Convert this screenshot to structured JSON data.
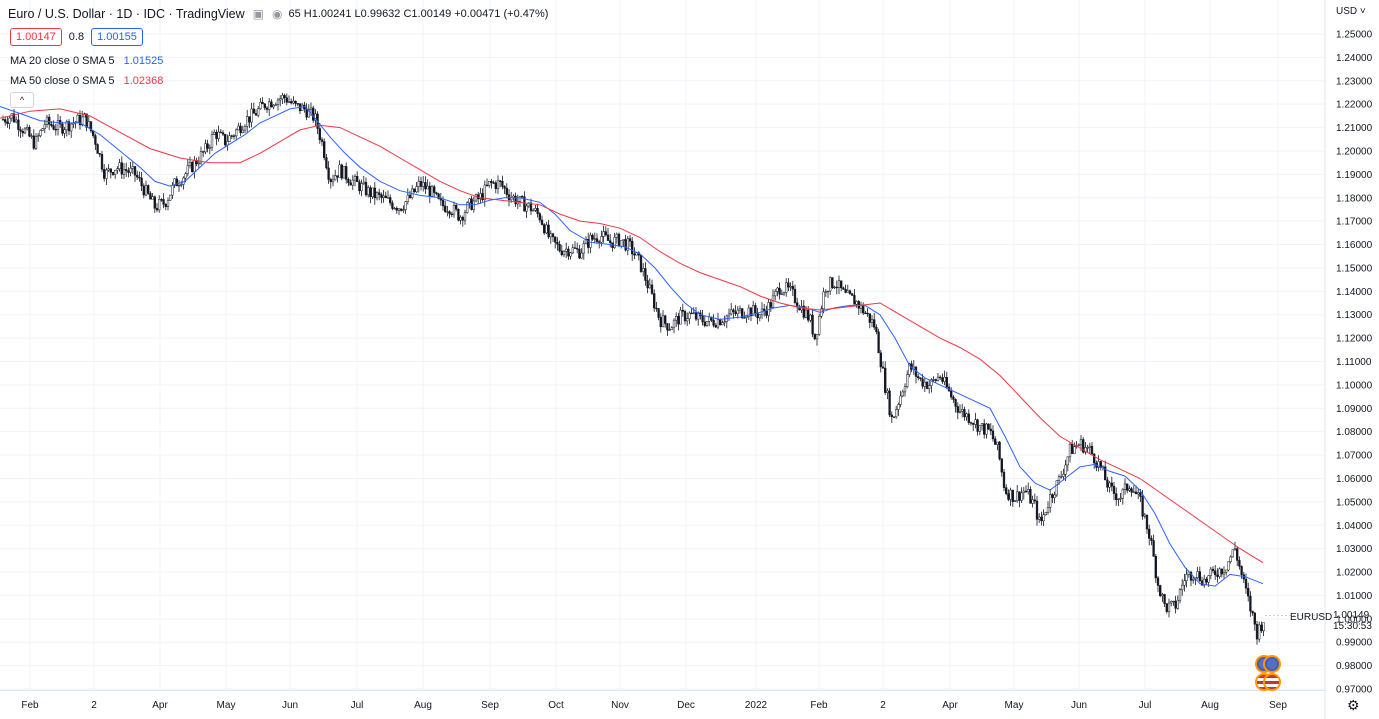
{
  "header": {
    "title": "Euro / U.S. Dollar · 1D · IDC · TradingView",
    "ohlc_text": "65 H1.00241 L0.99632 C1.00149 +0.00471 (+0.47%)"
  },
  "quote": {
    "bid": "1.00147",
    "spread": "0.8",
    "ask": "1.00155"
  },
  "ma20": {
    "label": "MA 20 close 0 SMA 5",
    "value": "1.01525",
    "color": "#2962ff"
  },
  "ma50": {
    "label": "MA 50 close 0 SMA 5",
    "value": "1.02368",
    "color": "#f23645"
  },
  "collapse_glyph": "^",
  "price_axis": {
    "currency": "USD"
  },
  "last_price": {
    "symbol": "EURUSD",
    "price": "1.00149",
    "countdown": "15:30:53"
  },
  "chart_data": {
    "type": "candlestick",
    "ylim": [
      0.967,
      1.261
    ],
    "grid": true,
    "y_ticks": [
      "1.25000",
      "1.24000",
      "1.23000",
      "1.22000",
      "1.21000",
      "1.20000",
      "1.19000",
      "1.18000",
      "1.17000",
      "1.16000",
      "1.15000",
      "1.14000",
      "1.13000",
      "1.12000",
      "1.11000",
      "1.10000",
      "1.09000",
      "1.08000",
      "1.07000",
      "1.06000",
      "1.05000",
      "1.04000",
      "1.03000",
      "1.02000",
      "1.01000",
      "1.00000",
      "0.99000",
      "0.98000",
      "0.97000"
    ],
    "x_ticks": [
      "Feb",
      "2",
      "Apr",
      "May",
      "Jun",
      "Jul",
      "Aug",
      "Sep",
      "Oct",
      "Nov",
      "Dec",
      "2022",
      "Feb",
      "2",
      "Apr",
      "May",
      "Jun",
      "Jul",
      "Aug",
      "Sep"
    ],
    "x_tick_pos": [
      30,
      94,
      160,
      226,
      290,
      357,
      423,
      490,
      556,
      620,
      686,
      756,
      819,
      883,
      950,
      1014,
      1079,
      1145,
      1210,
      1278
    ],
    "close_path": [
      [
        0,
        1.213
      ],
      [
        12,
        1.215
      ],
      [
        22,
        1.21
      ],
      [
        35,
        1.203
      ],
      [
        45,
        1.212
      ],
      [
        60,
        1.21
      ],
      [
        72,
        1.212
      ],
      [
        85,
        1.214
      ],
      [
        95,
        1.205
      ],
      [
        105,
        1.19
      ],
      [
        115,
        1.193
      ],
      [
        125,
        1.192
      ],
      [
        135,
        1.19
      ],
      [
        145,
        1.183
      ],
      [
        155,
        1.176
      ],
      [
        165,
        1.178
      ],
      [
        175,
        1.186
      ],
      [
        185,
        1.19
      ],
      [
        195,
        1.195
      ],
      [
        205,
        1.2
      ],
      [
        215,
        1.208
      ],
      [
        225,
        1.204
      ],
      [
        235,
        1.208
      ],
      [
        245,
        1.213
      ],
      [
        255,
        1.216
      ],
      [
        265,
        1.22
      ],
      [
        275,
        1.222
      ],
      [
        285,
        1.223
      ],
      [
        295,
        1.219
      ],
      [
        305,
        1.218
      ],
      [
        315,
        1.214
      ],
      [
        323,
        1.202
      ],
      [
        330,
        1.188
      ],
      [
        340,
        1.192
      ],
      [
        350,
        1.188
      ],
      [
        360,
        1.185
      ],
      [
        370,
        1.182
      ],
      [
        380,
        1.18
      ],
      [
        390,
        1.178
      ],
      [
        400,
        1.176
      ],
      [
        410,
        1.18
      ],
      [
        420,
        1.186
      ],
      [
        430,
        1.183
      ],
      [
        440,
        1.177
      ],
      [
        450,
        1.176
      ],
      [
        460,
        1.172
      ],
      [
        470,
        1.177
      ],
      [
        480,
        1.18
      ],
      [
        490,
        1.186
      ],
      [
        500,
        1.186
      ],
      [
        510,
        1.181
      ],
      [
        520,
        1.178
      ],
      [
        530,
        1.176
      ],
      [
        540,
        1.172
      ],
      [
        550,
        1.162
      ],
      [
        560,
        1.158
      ],
      [
        570,
        1.158
      ],
      [
        580,
        1.157
      ],
      [
        590,
        1.162
      ],
      [
        600,
        1.164
      ],
      [
        610,
        1.161
      ],
      [
        620,
        1.162
      ],
      [
        630,
        1.159
      ],
      [
        640,
        1.152
      ],
      [
        650,
        1.14
      ],
      [
        660,
        1.128
      ],
      [
        670,
        1.125
      ],
      [
        680,
        1.129
      ],
      [
        690,
        1.13
      ],
      [
        700,
        1.128
      ],
      [
        710,
        1.127
      ],
      [
        720,
        1.128
      ],
      [
        730,
        1.13
      ],
      [
        740,
        1.131
      ],
      [
        750,
        1.132
      ],
      [
        760,
        1.13
      ],
      [
        770,
        1.134
      ],
      [
        780,
        1.142
      ],
      [
        790,
        1.14
      ],
      [
        800,
        1.134
      ],
      [
        810,
        1.128
      ],
      [
        815,
        1.12
      ],
      [
        825,
        1.142
      ],
      [
        835,
        1.144
      ],
      [
        845,
        1.138
      ],
      [
        855,
        1.136
      ],
      [
        865,
        1.131
      ],
      [
        875,
        1.125
      ],
      [
        885,
        1.1
      ],
      [
        892,
        1.085
      ],
      [
        900,
        1.095
      ],
      [
        910,
        1.108
      ],
      [
        920,
        1.102
      ],
      [
        930,
        1.1
      ],
      [
        940,
        1.104
      ],
      [
        950,
        1.096
      ],
      [
        960,
        1.089
      ],
      [
        970,
        1.086
      ],
      [
        980,
        1.082
      ],
      [
        990,
        1.08
      ],
      [
        998,
        1.072
      ],
      [
        1005,
        1.055
      ],
      [
        1015,
        1.052
      ],
      [
        1025,
        1.055
      ],
      [
        1035,
        1.048
      ],
      [
        1040,
        1.04
      ],
      [
        1050,
        1.052
      ],
      [
        1060,
        1.06
      ],
      [
        1070,
        1.072
      ],
      [
        1080,
        1.075
      ],
      [
        1090,
        1.072
      ],
      [
        1100,
        1.065
      ],
      [
        1110,
        1.055
      ],
      [
        1120,
        1.052
      ],
      [
        1130,
        1.058
      ],
      [
        1140,
        1.05
      ],
      [
        1150,
        1.035
      ],
      [
        1158,
        1.015
      ],
      [
        1165,
        1.005
      ],
      [
        1175,
        1.005
      ],
      [
        1185,
        1.018
      ],
      [
        1195,
        1.02
      ],
      [
        1205,
        1.016
      ],
      [
        1215,
        1.02
      ],
      [
        1225,
        1.022
      ],
      [
        1235,
        1.03
      ],
      [
        1242,
        1.018
      ],
      [
        1250,
        1.005
      ],
      [
        1257,
        0.994
      ],
      [
        1265,
        1.001
      ]
    ],
    "series": [
      {
        "name": "MA 20 close 0 SMA 5",
        "color": "#2962ff",
        "points": [
          [
            0,
            1.219
          ],
          [
            20,
            1.216
          ],
          [
            40,
            1.213
          ],
          [
            60,
            1.212
          ],
          [
            80,
            1.212
          ],
          [
            100,
            1.207
          ],
          [
            120,
            1.2
          ],
          [
            140,
            1.193
          ],
          [
            155,
            1.187
          ],
          [
            170,
            1.185
          ],
          [
            185,
            1.187
          ],
          [
            200,
            1.193
          ],
          [
            215,
            1.199
          ],
          [
            230,
            1.203
          ],
          [
            245,
            1.207
          ],
          [
            260,
            1.212
          ],
          [
            275,
            1.215
          ],
          [
            290,
            1.218
          ],
          [
            305,
            1.219
          ],
          [
            315,
            1.214
          ],
          [
            330,
            1.206
          ],
          [
            345,
            1.199
          ],
          [
            360,
            1.193
          ],
          [
            380,
            1.187
          ],
          [
            400,
            1.183
          ],
          [
            420,
            1.181
          ],
          [
            440,
            1.18
          ],
          [
            460,
            1.177
          ],
          [
            475,
            1.177
          ],
          [
            490,
            1.179
          ],
          [
            505,
            1.18
          ],
          [
            520,
            1.18
          ],
          [
            540,
            1.178
          ],
          [
            555,
            1.173
          ],
          [
            570,
            1.166
          ],
          [
            590,
            1.161
          ],
          [
            610,
            1.16
          ],
          [
            625,
            1.159
          ],
          [
            640,
            1.156
          ],
          [
            655,
            1.15
          ],
          [
            670,
            1.142
          ],
          [
            685,
            1.135
          ],
          [
            700,
            1.13
          ],
          [
            720,
            1.128
          ],
          [
            740,
            1.129
          ],
          [
            760,
            1.131
          ],
          [
            775,
            1.133
          ],
          [
            790,
            1.134
          ],
          [
            805,
            1.133
          ],
          [
            820,
            1.131
          ],
          [
            835,
            1.133
          ],
          [
            850,
            1.134
          ],
          [
            865,
            1.134
          ],
          [
            880,
            1.13
          ],
          [
            895,
            1.12
          ],
          [
            910,
            1.108
          ],
          [
            925,
            1.103
          ],
          [
            940,
            1.1
          ],
          [
            955,
            1.097
          ],
          [
            970,
            1.094
          ],
          [
            990,
            1.09
          ],
          [
            1005,
            1.078
          ],
          [
            1020,
            1.065
          ],
          [
            1035,
            1.058
          ],
          [
            1050,
            1.055
          ],
          [
            1065,
            1.06
          ],
          [
            1080,
            1.065
          ],
          [
            1095,
            1.066
          ],
          [
            1110,
            1.063
          ],
          [
            1125,
            1.061
          ],
          [
            1140,
            1.055
          ],
          [
            1155,
            1.045
          ],
          [
            1170,
            1.032
          ],
          [
            1185,
            1.022
          ],
          [
            1200,
            1.015
          ],
          [
            1215,
            1.014
          ],
          [
            1230,
            1.019
          ],
          [
            1245,
            1.018
          ],
          [
            1263,
            1.015
          ]
        ]
      },
      {
        "name": "MA 50 close 0 SMA 5",
        "color": "#f23645",
        "points": [
          [
            0,
            1.214
          ],
          [
            30,
            1.217
          ],
          [
            60,
            1.218
          ],
          [
            90,
            1.215
          ],
          [
            120,
            1.208
          ],
          [
            150,
            1.201
          ],
          [
            180,
            1.197
          ],
          [
            210,
            1.195
          ],
          [
            240,
            1.195
          ],
          [
            260,
            1.199
          ],
          [
            280,
            1.204
          ],
          [
            300,
            1.209
          ],
          [
            320,
            1.211
          ],
          [
            340,
            1.21
          ],
          [
            360,
            1.206
          ],
          [
            380,
            1.202
          ],
          [
            400,
            1.197
          ],
          [
            420,
            1.192
          ],
          [
            440,
            1.187
          ],
          [
            460,
            1.183
          ],
          [
            480,
            1.18
          ],
          [
            500,
            1.179
          ],
          [
            520,
            1.178
          ],
          [
            540,
            1.177
          ],
          [
            560,
            1.173
          ],
          [
            580,
            1.17
          ],
          [
            600,
            1.169
          ],
          [
            620,
            1.167
          ],
          [
            640,
            1.163
          ],
          [
            660,
            1.157
          ],
          [
            680,
            1.152
          ],
          [
            700,
            1.148
          ],
          [
            720,
            1.145
          ],
          [
            740,
            1.142
          ],
          [
            760,
            1.138
          ],
          [
            780,
            1.135
          ],
          [
            800,
            1.133
          ],
          [
            820,
            1.132
          ],
          [
            840,
            1.133
          ],
          [
            860,
            1.134
          ],
          [
            880,
            1.135
          ],
          [
            900,
            1.13
          ],
          [
            920,
            1.125
          ],
          [
            940,
            1.12
          ],
          [
            960,
            1.116
          ],
          [
            980,
            1.111
          ],
          [
            1000,
            1.104
          ],
          [
            1020,
            1.095
          ],
          [
            1040,
            1.086
          ],
          [
            1060,
            1.078
          ],
          [
            1080,
            1.073
          ],
          [
            1100,
            1.068
          ],
          [
            1120,
            1.064
          ],
          [
            1140,
            1.06
          ],
          [
            1160,
            1.054
          ],
          [
            1180,
            1.048
          ],
          [
            1200,
            1.042
          ],
          [
            1220,
            1.036
          ],
          [
            1240,
            1.03
          ],
          [
            1263,
            1.024
          ]
        ]
      }
    ]
  }
}
